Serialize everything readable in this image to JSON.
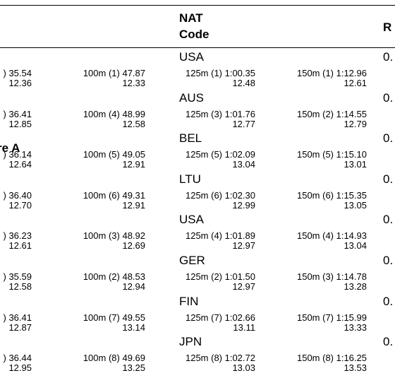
{
  "header": {
    "nat_code": [
      "NAT",
      "Code"
    ],
    "rank": "R"
  },
  "rows": [
    {
      "nat": "USA",
      "rank": "0.",
      "splits": [
        {
          "time": ") 35.54",
          "split": "12.36"
        },
        {
          "time": "100m (1) 47.87",
          "split": "12.33"
        },
        {
          "time": "125m (1) 1:00.35",
          "split": "12.48"
        },
        {
          "time": "150m (1) 1:12.96",
          "split": "12.61"
        }
      ]
    },
    {
      "nat": "AUS",
      "rank": "0.",
      "splits": [
        {
          "time": ") 36.41",
          "split": "12.85"
        },
        {
          "time": "100m (4) 48.99",
          "split": "12.58"
        },
        {
          "time": "125m (3) 1:01.76",
          "split": "12.77"
        },
        {
          "time": "150m (2) 1:14.55",
          "split": "12.79"
        }
      ]
    },
    {
      "nat": "BEL",
      "rank": "0.",
      "note": "re A",
      "splits": [
        {
          "time": ") 36.14",
          "split": "12.64"
        },
        {
          "time": "100m (5) 49.05",
          "split": "12.91"
        },
        {
          "time": "125m (5) 1:02.09",
          "split": "13.04"
        },
        {
          "time": "150m (5) 1:15.10",
          "split": "13.01"
        }
      ]
    },
    {
      "nat": "LTU",
      "rank": "0.",
      "splits": [
        {
          "time": ") 36.40",
          "split": "12.70"
        },
        {
          "time": "100m (6) 49.31",
          "split": "12.91"
        },
        {
          "time": "125m (6) 1:02.30",
          "split": "12.99"
        },
        {
          "time": "150m (6) 1:15.35",
          "split": "13.05"
        }
      ]
    },
    {
      "nat": "USA",
      "rank": "0.",
      "splits": [
        {
          "time": ") 36.23",
          "split": "12.61"
        },
        {
          "time": "100m (3) 48.92",
          "split": "12.69"
        },
        {
          "time": "125m (4) 1:01.89",
          "split": "12.97"
        },
        {
          "time": "150m (4) 1:14.93",
          "split": "13.04"
        }
      ]
    },
    {
      "nat": "GER",
      "rank": "0.",
      "splits": [
        {
          "time": ") 35.59",
          "split": "12.58"
        },
        {
          "time": "100m (2) 48.53",
          "split": "12.94"
        },
        {
          "time": "125m (2) 1:01.50",
          "split": "12.97"
        },
        {
          "time": "150m (3) 1:14.78",
          "split": "13.28"
        }
      ]
    },
    {
      "nat": "FIN",
      "rank": "0.",
      "splits": [
        {
          "time": ") 36.41",
          "split": "12.87"
        },
        {
          "time": "100m (7) 49.55",
          "split": "13.14"
        },
        {
          "time": "125m (7) 1:02.66",
          "split": "13.11"
        },
        {
          "time": "150m (7) 1:15.99",
          "split": "13.33"
        }
      ]
    },
    {
      "nat": "JPN",
      "rank": "0.",
      "splits": [
        {
          "time": ") 36.44",
          "split": "12.95"
        },
        {
          "time": "100m (8) 49.69",
          "split": "13.25"
        },
        {
          "time": "125m (8) 1:02.72",
          "split": "13.03"
        },
        {
          "time": "150m (8) 1:16.25",
          "split": "13.53"
        }
      ]
    }
  ]
}
